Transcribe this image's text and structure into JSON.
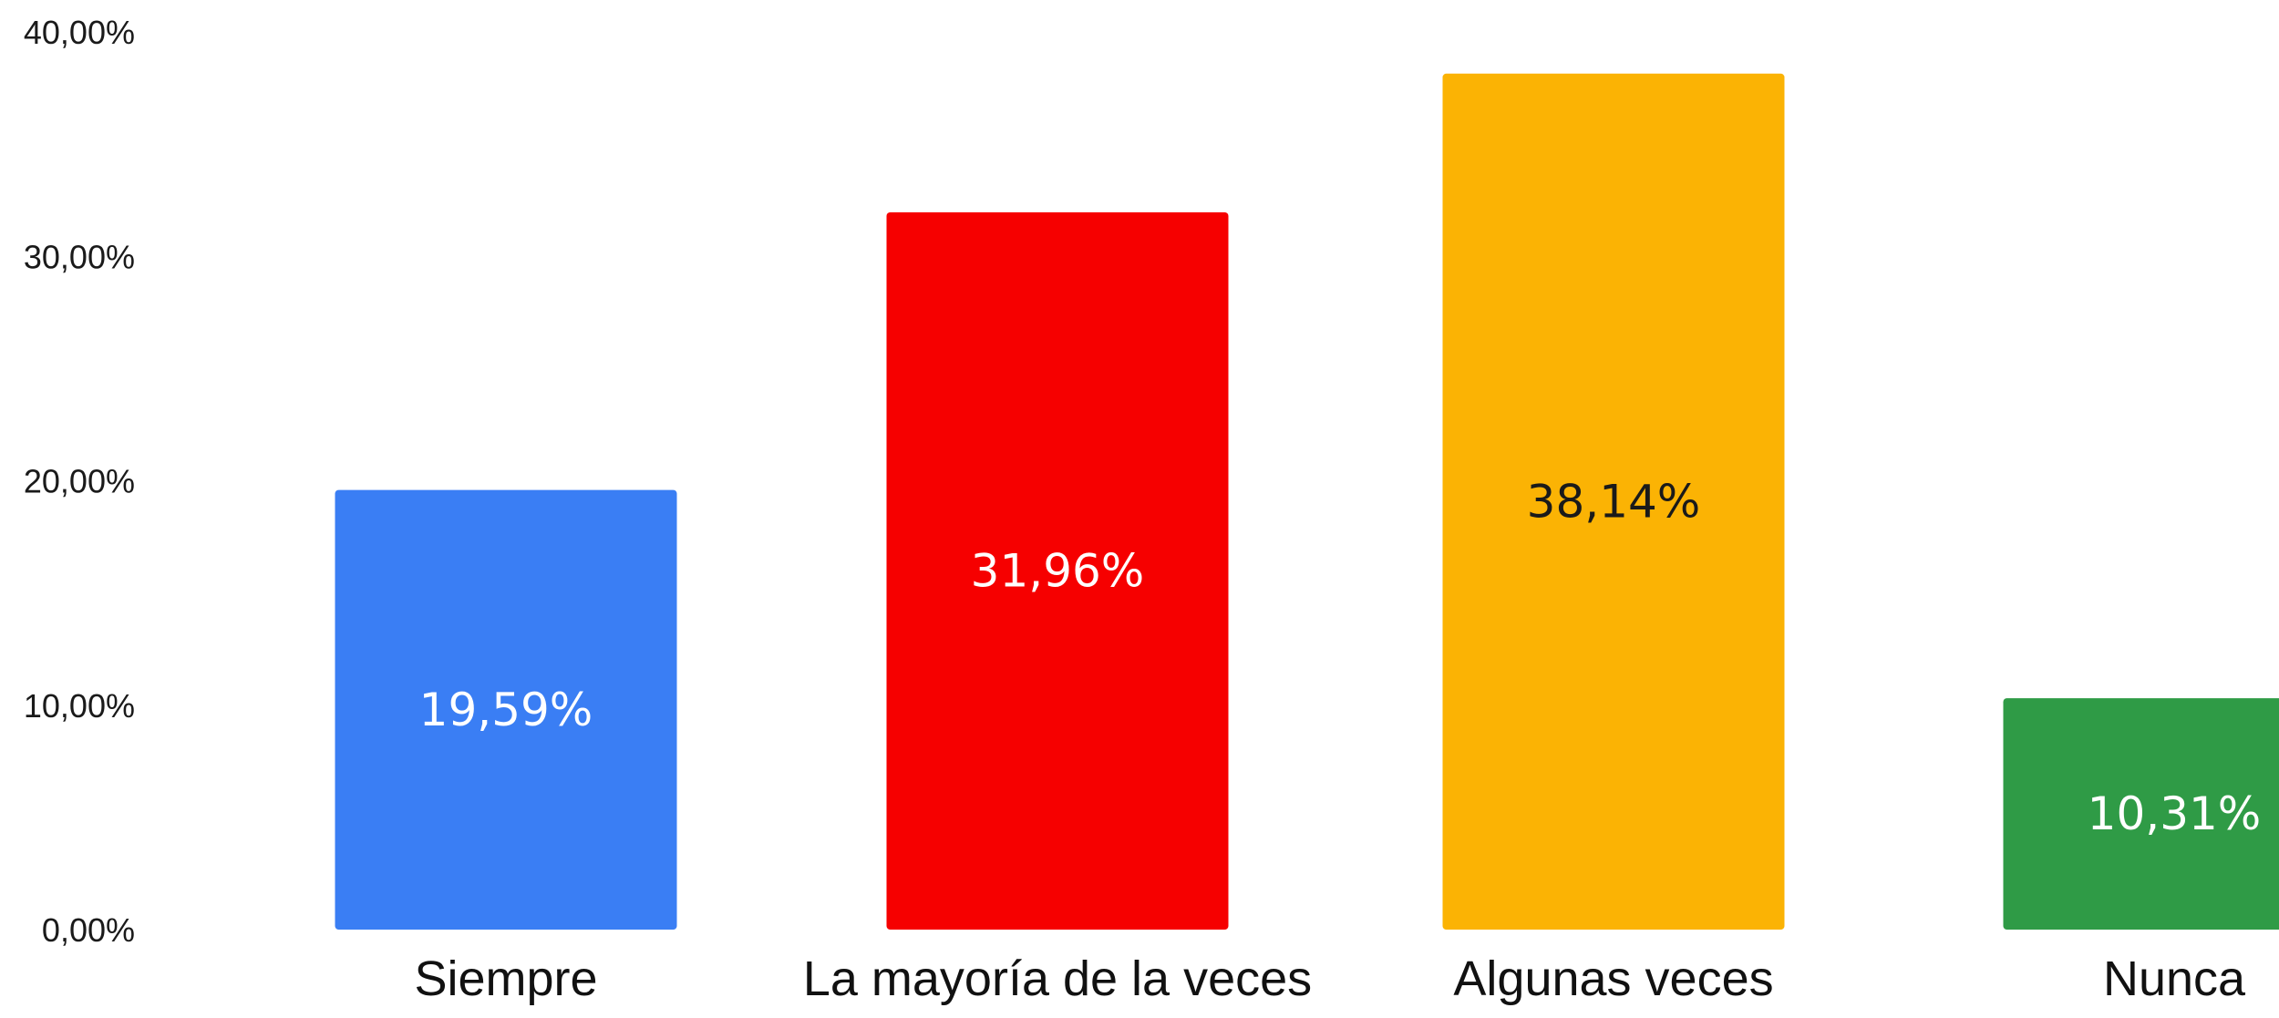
{
  "chart_data": {
    "type": "bar",
    "title": "",
    "xlabel": "",
    "ylabel": "",
    "categories": [
      "Siempre",
      "La mayoría de la veces",
      "Algunas veces",
      "Nunca"
    ],
    "values": [
      19.59,
      31.96,
      38.14,
      10.31
    ],
    "data_labels": [
      "19,59%",
      "31,96%",
      "38,14%",
      "10,31%"
    ],
    "ylim": [
      0,
      40
    ],
    "yticks": [
      0,
      10,
      20,
      30,
      40
    ],
    "ytick_labels": [
      "0,00%",
      "10,00%",
      "20,00%",
      "30,00%",
      "40,00%"
    ],
    "bar_colors": [
      "#3a7ef4",
      "#f60000",
      "#fbb304",
      "#2f9b46"
    ],
    "data_label_colors": [
      "#ffffff",
      "#ffffff",
      "#1a1a1a",
      "#ffffff"
    ],
    "grid": false,
    "legend": "none"
  }
}
